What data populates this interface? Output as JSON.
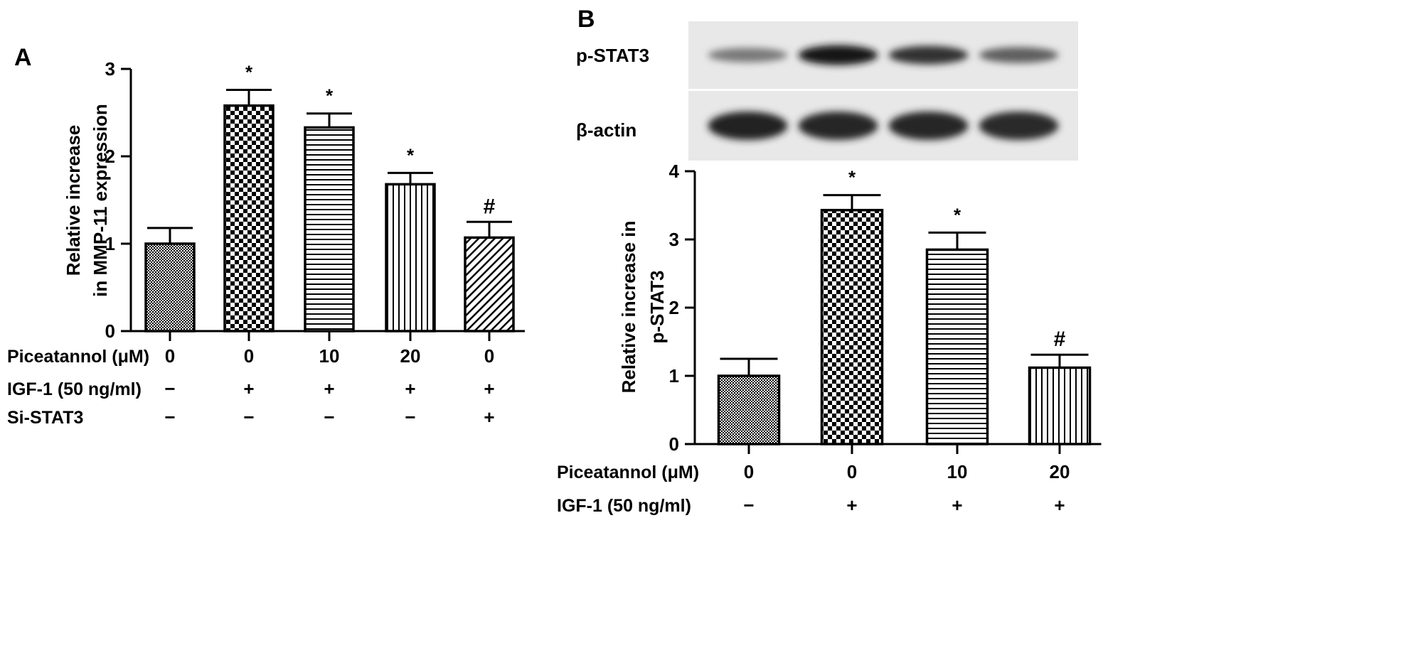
{
  "chart_data": [
    {
      "panel": "A",
      "type": "bar",
      "ylabel_lines": [
        "Relative increase",
        "in MMP-11 expression"
      ],
      "ylim": [
        0,
        3
      ],
      "yticks": [
        0,
        1,
        2,
        3
      ],
      "values": [
        1.0,
        2.58,
        2.33,
        1.68,
        1.07
      ],
      "errors": [
        0.18,
        0.18,
        0.16,
        0.13,
        0.18
      ],
      "annotations": [
        "",
        "*",
        "*",
        "*",
        "#"
      ],
      "patterns": [
        "fine",
        "checker",
        "hlines",
        "vlines",
        "diag"
      ],
      "condition_rows": [
        {
          "label": "Piceatannol  (μM)",
          "values": [
            "0",
            "0",
            "10",
            "20",
            "0"
          ]
        },
        {
          "label": "IGF-1 (50 ng/ml)",
          "values": [
            "−",
            "+",
            "+",
            "+",
            "+"
          ]
        },
        {
          "label": "Si-STAT3",
          "values": [
            "−",
            "−",
            "−",
            "−",
            "+"
          ]
        }
      ]
    },
    {
      "panel": "B",
      "type": "bar",
      "ylabel_lines": [
        "Relative increase in",
        "p-STAT3"
      ],
      "ylim": [
        0,
        4
      ],
      "yticks": [
        0,
        1,
        2,
        3,
        4
      ],
      "values": [
        1.0,
        3.43,
        2.85,
        1.12
      ],
      "errors": [
        0.25,
        0.22,
        0.25,
        0.19
      ],
      "annotations": [
        "",
        "*",
        "*",
        "#"
      ],
      "patterns": [
        "fine",
        "checker",
        "hlines",
        "vlines"
      ],
      "blots": [
        {
          "label": "p-STAT3",
          "intensities": [
            0.45,
            1.0,
            0.85,
            0.6
          ]
        },
        {
          "label": "β-actin",
          "intensities": [
            0.95,
            0.92,
            0.92,
            0.9
          ]
        }
      ],
      "condition_rows": [
        {
          "label": "Piceatannol (μM)",
          "values": [
            "0",
            "0",
            "10",
            "20"
          ]
        },
        {
          "label": "IGF-1 (50 ng/ml)",
          "values": [
            "−",
            "+",
            "+",
            "+"
          ]
        }
      ]
    }
  ]
}
